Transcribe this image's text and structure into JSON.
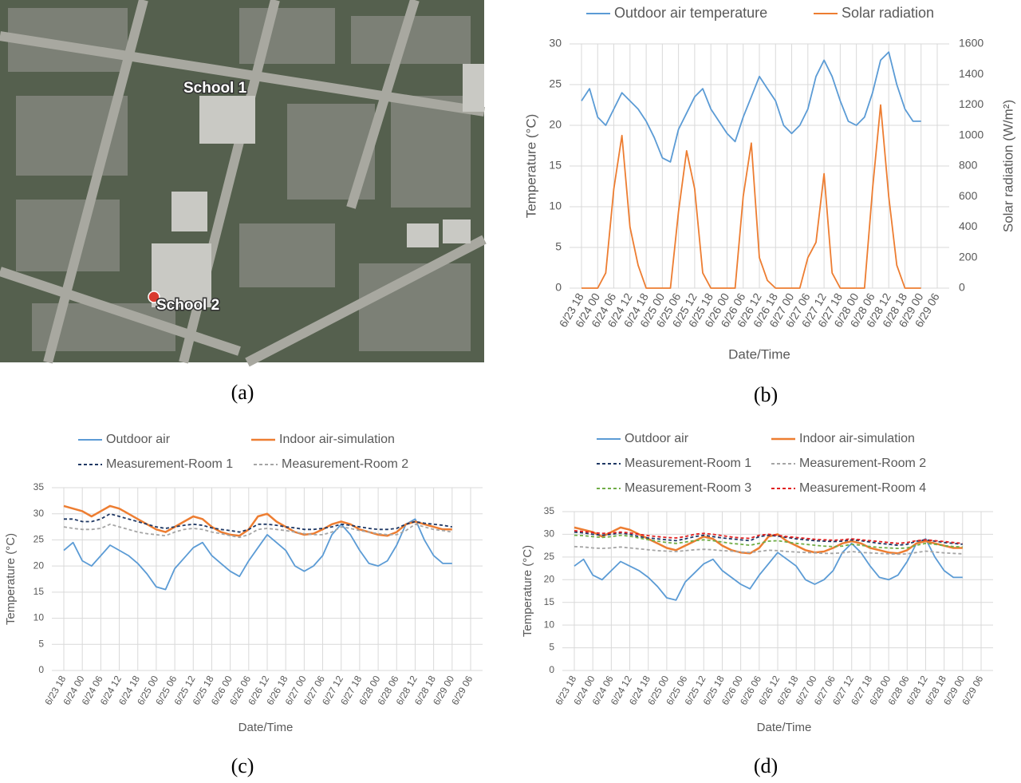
{
  "image": {
    "labels": [
      "School 1",
      "School 2"
    ],
    "caption": "(a)"
  },
  "chart_data": [
    {
      "type": "line",
      "caption": "(b)",
      "xlabel": "Date/Time",
      "ylabel": "Temperature (°C)",
      "y2label": "Solar radiation (W/m²)",
      "legend": "top",
      "grid": true,
      "xticks": [
        "6/23 18",
        "6/24 00",
        "6/24 06",
        "6/24 12",
        "6/24 18",
        "6/25 00",
        "6/25 06",
        "6/25 12",
        "6/25 18",
        "6/26 00",
        "6/26 06",
        "6/26 12",
        "6/26 18",
        "6/27 00",
        "6/27 06",
        "6/27 12",
        "6/27 18",
        "6/28 00",
        "6/28 06",
        "6/28 12",
        "6/28 18",
        "6/29 00",
        "6/29 06"
      ],
      "x": [
        "6/23 18",
        "6/23 21",
        "6/24 00",
        "6/24 03",
        "6/24 06",
        "6/24 09",
        "6/24 12",
        "6/24 15",
        "6/24 18",
        "6/24 21",
        "6/25 00",
        "6/25 03",
        "6/25 06",
        "6/25 09",
        "6/25 12",
        "6/25 15",
        "6/25 18",
        "6/25 21",
        "6/26 00",
        "6/26 03",
        "6/26 06",
        "6/26 09",
        "6/26 12",
        "6/26 15",
        "6/26 18",
        "6/26 21",
        "6/27 00",
        "6/27 03",
        "6/27 06",
        "6/27 09",
        "6/27 12",
        "6/27 15",
        "6/27 18",
        "6/27 21",
        "6/28 00",
        "6/28 03",
        "6/28 06",
        "6/28 09",
        "6/28 12",
        "6/28 15",
        "6/28 18",
        "6/28 21",
        "6/29 00"
      ],
      "ylim": [
        0,
        30
      ],
      "yticks": [
        0,
        5,
        10,
        15,
        20,
        25,
        30
      ],
      "y2lim": [
        0,
        1600
      ],
      "y2ticks": [
        0,
        200,
        400,
        600,
        800,
        1000,
        1200,
        1400,
        1600
      ],
      "series": [
        {
          "name": "Outdoor air temperature",
          "color": "#5b9bd5",
          "values": [
            23,
            24.5,
            21,
            20,
            22,
            24,
            23,
            22,
            20.5,
            18.5,
            16,
            15.5,
            19.5,
            21.5,
            23.5,
            24.5,
            22,
            20.5,
            19,
            18,
            21,
            23.5,
            26,
            24.5,
            23,
            20,
            19,
            20,
            22,
            26,
            28,
            26,
            23,
            20.5,
            20,
            21,
            24,
            28,
            29,
            25,
            22,
            20.5,
            20.5
          ]
        },
        {
          "name": "Solar radiation",
          "color": "#ed7d31",
          "axis": "y2",
          "values": [
            0,
            0,
            0,
            100,
            650,
            1000,
            400,
            150,
            0,
            0,
            0,
            0,
            500,
            900,
            650,
            100,
            0,
            0,
            0,
            0,
            600,
            950,
            200,
            50,
            0,
            0,
            0,
            0,
            200,
            300,
            750,
            100,
            0,
            0,
            0,
            0,
            650,
            1200,
            600,
            150,
            0,
            0,
            0
          ]
        }
      ]
    },
    {
      "type": "line",
      "caption": "(c)",
      "xlabel": "Date/Time",
      "ylabel": "Temperature (°C)",
      "legend": "top",
      "grid": true,
      "xticks": [
        "6/23 18",
        "6/24 00",
        "6/24 06",
        "6/24 12",
        "6/24 18",
        "6/25 00",
        "6/25 06",
        "6/25 12",
        "6/25 18",
        "6/26 00",
        "6/26 06",
        "6/26 12",
        "6/26 18",
        "6/27 00",
        "6/27 06",
        "6/27 12",
        "6/27 18",
        "6/28 00",
        "6/28 06",
        "6/28 12",
        "6/28 18",
        "6/29 00",
        "6/29 06"
      ],
      "x": [
        "6/23 18",
        "6/23 21",
        "6/24 00",
        "6/24 03",
        "6/24 06",
        "6/24 09",
        "6/24 12",
        "6/24 15",
        "6/24 18",
        "6/24 21",
        "6/25 00",
        "6/25 03",
        "6/25 06",
        "6/25 09",
        "6/25 12",
        "6/25 15",
        "6/25 18",
        "6/25 21",
        "6/26 00",
        "6/26 03",
        "6/26 06",
        "6/26 09",
        "6/26 12",
        "6/26 15",
        "6/26 18",
        "6/26 21",
        "6/27 00",
        "6/27 03",
        "6/27 06",
        "6/27 09",
        "6/27 12",
        "6/27 15",
        "6/27 18",
        "6/27 21",
        "6/28 00",
        "6/28 03",
        "6/28 06",
        "6/28 09",
        "6/28 12",
        "6/28 15",
        "6/28 18",
        "6/28 21",
        "6/29 00"
      ],
      "ylim": [
        0,
        35
      ],
      "yticks": [
        0,
        5,
        10,
        15,
        20,
        25,
        30,
        35
      ],
      "series": [
        {
          "name": "Outdoor air",
          "color": "#5b9bd5",
          "values": [
            23,
            24.5,
            21,
            20,
            22,
            24,
            23,
            22,
            20.5,
            18.5,
            16,
            15.5,
            19.5,
            21.5,
            23.5,
            24.5,
            22,
            20.5,
            19,
            18,
            21,
            23.5,
            26,
            24.5,
            23,
            20,
            19,
            20,
            22,
            26,
            28,
            26,
            23,
            20.5,
            20,
            21,
            24,
            28,
            29,
            25,
            22,
            20.5,
            20.5
          ]
        },
        {
          "name": "Indoor air-simulation",
          "color": "#ed7d31",
          "width": 2.5,
          "values": [
            31.5,
            31,
            30.5,
            29.5,
            30.5,
            31.5,
            31,
            30,
            29,
            28,
            27,
            26.5,
            27.5,
            28.5,
            29.5,
            29,
            27.5,
            26.5,
            26,
            25.8,
            27,
            29.5,
            30,
            28.5,
            27.5,
            26.5,
            26,
            26.2,
            27,
            28,
            28.5,
            28,
            27,
            26.5,
            26,
            25.8,
            26.5,
            28,
            28.5,
            28,
            27.5,
            27,
            27
          ]
        },
        {
          "name": "Measurement-Room 1",
          "color": "#1f3864",
          "style": "dashed",
          "values": [
            29,
            29,
            28.5,
            28.5,
            29,
            30,
            29.5,
            29,
            28.5,
            28,
            27.5,
            27.2,
            27.5,
            27.8,
            28,
            27.8,
            27.3,
            27,
            26.8,
            26.5,
            27,
            28,
            28,
            27.8,
            27.5,
            27.3,
            27,
            27,
            27.2,
            27.5,
            28,
            27.8,
            27.5,
            27.2,
            27,
            27,
            27.2,
            28,
            28.5,
            28.2,
            28,
            27.8,
            27.5
          ]
        },
        {
          "name": "Measurement-Room 2",
          "color": "#a5a5a5",
          "style": "dashed",
          "values": [
            27.5,
            27.2,
            27,
            27,
            27.2,
            28,
            27.5,
            27,
            26.5,
            26.2,
            26,
            25.8,
            26.5,
            27,
            27.2,
            27,
            26.5,
            26.2,
            25.8,
            25.5,
            26,
            27,
            27.2,
            27,
            26.8,
            26.5,
            26.2,
            26,
            26,
            26.5,
            27.5,
            27.2,
            26.8,
            26.5,
            26.2,
            26,
            26,
            26.8,
            28,
            27.5,
            27,
            26.8,
            26.5
          ]
        }
      ]
    },
    {
      "type": "line",
      "caption": "(d)",
      "xlabel": "Date/Time",
      "ylabel": "Temperature (°C)",
      "legend": "top",
      "grid": true,
      "xticks": [
        "6/23 18",
        "6/24 00",
        "6/24 06",
        "6/24 12",
        "6/24 18",
        "6/25 00",
        "6/25 06",
        "6/25 12",
        "6/25 18",
        "6/26 00",
        "6/26 06",
        "6/26 12",
        "6/26 18",
        "6/27 00",
        "6/27 06",
        "6/27 12",
        "6/27 18",
        "6/28 00",
        "6/28 06",
        "6/28 12",
        "6/28 18",
        "6/29 00",
        "6/29 06"
      ],
      "x": [
        "6/23 18",
        "6/23 21",
        "6/24 00",
        "6/24 03",
        "6/24 06",
        "6/24 09",
        "6/24 12",
        "6/24 15",
        "6/24 18",
        "6/24 21",
        "6/25 00",
        "6/25 03",
        "6/25 06",
        "6/25 09",
        "6/25 12",
        "6/25 15",
        "6/25 18",
        "6/25 21",
        "6/26 00",
        "6/26 03",
        "6/26 06",
        "6/26 09",
        "6/26 12",
        "6/26 15",
        "6/26 18",
        "6/26 21",
        "6/27 00",
        "6/27 03",
        "6/27 06",
        "6/27 09",
        "6/27 12",
        "6/27 15",
        "6/27 18",
        "6/27 21",
        "6/28 00",
        "6/28 03",
        "6/28 06",
        "6/28 09",
        "6/28 12",
        "6/28 15",
        "6/28 18",
        "6/28 21",
        "6/29 00"
      ],
      "ylim": [
        0,
        35
      ],
      "yticks": [
        0,
        5,
        10,
        15,
        20,
        25,
        30,
        35
      ],
      "series": [
        {
          "name": "Outdoor air",
          "color": "#5b9bd5",
          "values": [
            23,
            24.5,
            21,
            20,
            22,
            24,
            23,
            22,
            20.5,
            18.5,
            16,
            15.5,
            19.5,
            21.5,
            23.5,
            24.5,
            22,
            20.5,
            19,
            18,
            21,
            23.5,
            26,
            24.5,
            23,
            20,
            19,
            20,
            22,
            26,
            28,
            26,
            23,
            20.5,
            20,
            21,
            24,
            28,
            29,
            25,
            22,
            20.5,
            20.5
          ]
        },
        {
          "name": "Indoor air-simulation",
          "color": "#ed7d31",
          "width": 2.5,
          "values": [
            31.5,
            31,
            30.5,
            29.5,
            30.5,
            31.5,
            31,
            30,
            29,
            28,
            27,
            26.5,
            27.5,
            28.5,
            29.5,
            29,
            27.5,
            26.5,
            26,
            25.8,
            27,
            29.5,
            30,
            28.5,
            27.5,
            26.5,
            26,
            26.2,
            27,
            28,
            28.5,
            28,
            27,
            26.5,
            26,
            25.8,
            26.5,
            28,
            28.5,
            28,
            27.5,
            27,
            27
          ]
        },
        {
          "name": "Measurement-Room 1",
          "color": "#1f3864",
          "style": "dashed",
          "values": [
            30.5,
            30.3,
            30,
            29.8,
            30,
            30.3,
            30,
            29.5,
            29.2,
            29,
            28.8,
            28.6,
            29,
            29.5,
            29.8,
            29.5,
            29.2,
            29,
            28.8,
            28.6,
            29.5,
            29.8,
            29.6,
            29.3,
            29,
            28.8,
            28.6,
            28.5,
            28.4,
            28.5,
            28.8,
            28.6,
            28.3,
            28,
            27.8,
            27.6,
            27.8,
            28.5,
            28.8,
            28.5,
            28.2,
            28,
            27.8
          ]
        },
        {
          "name": "Measurement-Room 2",
          "color": "#a5a5a5",
          "style": "dashed",
          "values": [
            27.3,
            27.2,
            27,
            26.9,
            27,
            27.2,
            27,
            26.8,
            26.6,
            26.4,
            26.3,
            26.2,
            26.4,
            26.6,
            26.7,
            26.6,
            26.4,
            26.3,
            26.1,
            26,
            26.2,
            26.5,
            26.4,
            26.2,
            26.1,
            26,
            25.9,
            25.8,
            25.8,
            25.9,
            26.2,
            26,
            25.9,
            25.8,
            25.7,
            25.6,
            25.7,
            26,
            26.3,
            26.1,
            25.9,
            25.8,
            25.7
          ]
        },
        {
          "name": "Measurement-Room 3",
          "color": "#70ad47",
          "style": "dashed",
          "values": [
            29.8,
            29.7,
            29.5,
            29.3,
            29.5,
            29.8,
            29.6,
            29.2,
            28.8,
            28.5,
            28.2,
            28,
            28.3,
            28.6,
            28.8,
            28.6,
            28.3,
            28,
            27.8,
            27.6,
            28,
            28.5,
            28.6,
            28.3,
            28,
            27.8,
            27.6,
            27.4,
            27.3,
            27.4,
            27.8,
            27.6,
            27.3,
            27.1,
            27,
            26.9,
            27,
            27.6,
            28,
            27.8,
            27.5,
            27.3,
            27.2
          ]
        },
        {
          "name": "Measurement-Room 4",
          "color": "#e02020",
          "style": "dashed",
          "values": [
            30.8,
            30.6,
            30.4,
            30.2,
            30.3,
            30.5,
            30.3,
            30,
            29.7,
            29.5,
            29.3,
            29.2,
            29.5,
            30,
            30.2,
            30,
            29.7,
            29.4,
            29.2,
            29.1,
            29.8,
            30,
            29.8,
            29.5,
            29.3,
            29.1,
            28.9,
            28.8,
            28.7,
            28.8,
            29,
            28.8,
            28.6,
            28.4,
            28.2,
            28,
            28.2,
            28.6,
            28.8,
            28.6,
            28.4,
            28.2,
            28
          ]
        }
      ]
    }
  ]
}
